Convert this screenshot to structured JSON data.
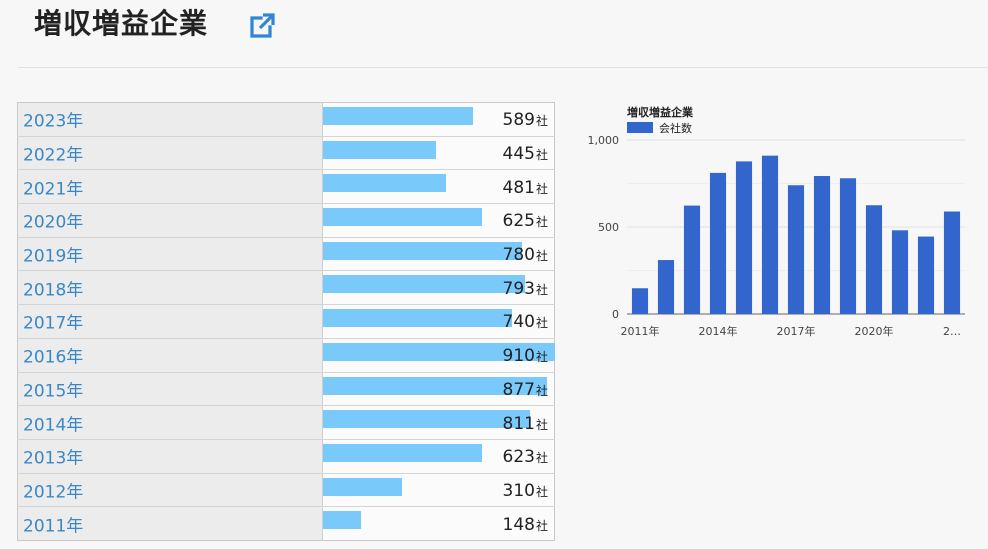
{
  "header": {
    "title": "増収増益企業",
    "link_icon": "external-link-icon"
  },
  "colors": {
    "bar_light": "#79c9fb",
    "bar_dark": "#3366cc",
    "link": "#3a87c8"
  },
  "unit": "社",
  "rows": [
    {
      "year": "2023年",
      "count": 589
    },
    {
      "year": "2022年",
      "count": 445
    },
    {
      "year": "2021年",
      "count": 481
    },
    {
      "year": "2020年",
      "count": 625
    },
    {
      "year": "2019年",
      "count": 780
    },
    {
      "year": "2018年",
      "count": 793
    },
    {
      "year": "2017年",
      "count": 740
    },
    {
      "year": "2016年",
      "count": 910
    },
    {
      "year": "2015年",
      "count": 877
    },
    {
      "year": "2014年",
      "count": 811
    },
    {
      "year": "2013年",
      "count": 623
    },
    {
      "year": "2012年",
      "count": 310
    },
    {
      "year": "2011年",
      "count": 148
    }
  ],
  "chart_data": {
    "type": "bar",
    "title": "増収増益企業",
    "categories": [
      "2011年",
      "2012年",
      "2013年",
      "2014年",
      "2015年",
      "2016年",
      "2017年",
      "2018年",
      "2019年",
      "2020年",
      "2021年",
      "2022年",
      "2023年"
    ],
    "series": [
      {
        "name": "会社数",
        "values": [
          148,
          310,
          623,
          811,
          877,
          910,
          740,
          793,
          780,
          625,
          481,
          445,
          589
        ]
      }
    ],
    "x_tick_labels": [
      "2011年",
      "2014年",
      "2017年",
      "2020年",
      "2…"
    ],
    "y_tick_labels": [
      "0",
      "500",
      "1,000"
    ],
    "ylim": [
      0,
      1000
    ],
    "grid": true,
    "legend_position": "top-left"
  }
}
